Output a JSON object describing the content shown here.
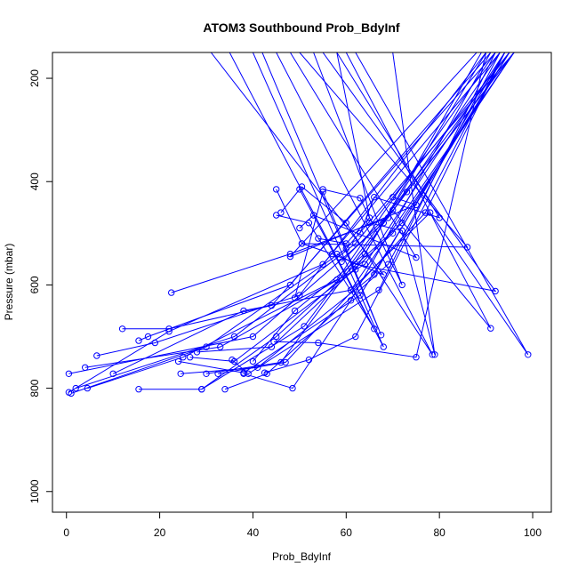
{
  "chart_data": {
    "type": "line",
    "title": "ATOM3 Southbound Prob_BdyInf",
    "xlabel": "Prob_BdyInf",
    "ylabel": "Pressure (mbar)",
    "xlim": [
      -3,
      104
    ],
    "ylim": [
      1040,
      150
    ],
    "y_reversed": true,
    "xticks": [
      0,
      20,
      40,
      60,
      80,
      100
    ],
    "yticks": [
      200,
      400,
      600,
      800,
      1000
    ],
    "color": "#0000ff",
    "marker": "open-circle",
    "grid": false,
    "legend": "none",
    "series": [
      {
        "points": [
          [
            1,
            810
          ],
          [
            30,
            720
          ],
          [
            60,
            530
          ],
          [
            96,
            150
          ]
        ]
      },
      {
        "points": [
          [
            0.5,
            808
          ],
          [
            22,
            690
          ],
          [
            55,
            560
          ],
          [
            93,
            150
          ]
        ]
      },
      {
        "points": [
          [
            2,
            800
          ],
          [
            36,
            700
          ],
          [
            62,
            520
          ],
          [
            95,
            150
          ]
        ]
      },
      {
        "points": [
          [
            4.5,
            800
          ],
          [
            25,
            740
          ],
          [
            58,
            590
          ],
          [
            92,
            150
          ]
        ]
      },
      {
        "points": [
          [
            0.5,
            772
          ],
          [
            40,
            700
          ],
          [
            68,
            480
          ],
          [
            96,
            150
          ]
        ]
      },
      {
        "points": [
          [
            4,
            760
          ],
          [
            33,
            720
          ],
          [
            64,
            560
          ],
          [
            94,
            150
          ]
        ]
      },
      {
        "points": [
          [
            6.5,
            737
          ],
          [
            19,
            712
          ],
          [
            50,
            620
          ],
          [
            90,
            150
          ]
        ]
      },
      {
        "points": [
          [
            10,
            772
          ],
          [
            38,
            650
          ],
          [
            61,
            610
          ],
          [
            96,
            150
          ]
        ]
      },
      {
        "points": [
          [
            12,
            685
          ],
          [
            22,
            685
          ],
          [
            44,
            640
          ],
          [
            92,
            150
          ]
        ]
      },
      {
        "points": [
          [
            15.5,
            708
          ],
          [
            17.5,
            700
          ],
          [
            48,
            600
          ],
          [
            91,
            150
          ]
        ]
      },
      {
        "points": [
          [
            15.5,
            802
          ],
          [
            29,
            802
          ],
          [
            51,
            680
          ],
          [
            95,
            150
          ]
        ]
      },
      {
        "points": [
          [
            22.5,
            615
          ],
          [
            48,
            540
          ],
          [
            69,
            470
          ],
          [
            93,
            150
          ]
        ]
      },
      {
        "points": [
          [
            24,
            748
          ],
          [
            38,
            770
          ],
          [
            63,
            620
          ],
          [
            95,
            150
          ]
        ]
      },
      {
        "points": [
          [
            24.5,
            772
          ],
          [
            41,
            760
          ],
          [
            66,
            580
          ],
          [
            94,
            150
          ]
        ]
      },
      {
        "points": [
          [
            26.5,
            740
          ],
          [
            36,
            748
          ],
          [
            62,
            570
          ],
          [
            90,
            150
          ]
        ]
      },
      {
        "points": [
          [
            28,
            730
          ],
          [
            44,
            720
          ],
          [
            70,
            500
          ],
          [
            96,
            150
          ]
        ]
      },
      {
        "points": [
          [
            29,
            802
          ],
          [
            45,
            700
          ],
          [
            72,
            480
          ],
          [
            95,
            150
          ]
        ]
      },
      {
        "points": [
          [
            30,
            772
          ],
          [
            46,
            750
          ],
          [
            73,
            420
          ],
          [
            96,
            150
          ]
        ]
      },
      {
        "points": [
          [
            32.5,
            772
          ],
          [
            47,
            750
          ],
          [
            77,
            460
          ],
          [
            94,
            150
          ]
        ]
      },
      {
        "points": [
          [
            34,
            802
          ],
          [
            43,
            772
          ],
          [
            69,
            560
          ],
          [
            93,
            150
          ]
        ]
      },
      {
        "points": [
          [
            35.5,
            745
          ],
          [
            39,
            772
          ],
          [
            67,
            610
          ],
          [
            92,
            150
          ]
        ]
      },
      {
        "points": [
          [
            38,
            772
          ],
          [
            48.5,
            800
          ],
          [
            61,
            630
          ],
          [
            91,
            150
          ]
        ]
      },
      {
        "points": [
          [
            40,
            748
          ],
          [
            49,
            650
          ],
          [
            64,
            540
          ],
          [
            89,
            150
          ]
        ]
      },
      {
        "points": [
          [
            42.5,
            770
          ],
          [
            52,
            745
          ],
          [
            62,
            700
          ],
          [
            94,
            150
          ]
        ]
      },
      {
        "points": [
          [
            44.5,
            710
          ],
          [
            54,
            712
          ],
          [
            75,
            740
          ],
          [
            90,
            150
          ]
        ]
      },
      {
        "points": [
          [
            45,
            415
          ],
          [
            50.5,
            520
          ],
          [
            86,
            527
          ],
          [
            50,
            150
          ]
        ]
      },
      {
        "points": [
          [
            45,
            465
          ],
          [
            52,
            480
          ],
          [
            66,
            685
          ],
          [
            35,
            150
          ]
        ]
      },
      {
        "points": [
          [
            46,
            460
          ],
          [
            50,
            415
          ],
          [
            68,
            720
          ],
          [
            40,
            150
          ]
        ]
      },
      {
        "points": [
          [
            49,
            625
          ],
          [
            55,
            420
          ],
          [
            67.5,
            697
          ],
          [
            42,
            150
          ]
        ]
      },
      {
        "points": [
          [
            50.5,
            410
          ],
          [
            60,
            480
          ],
          [
            78.5,
            735
          ],
          [
            45,
            150
          ]
        ]
      },
      {
        "points": [
          [
            50,
            490
          ],
          [
            53,
            465
          ],
          [
            75,
            547
          ],
          [
            48,
            150
          ]
        ]
      },
      {
        "points": [
          [
            50.5,
            520
          ],
          [
            57,
            540
          ],
          [
            68,
            580
          ],
          [
            31,
            150
          ]
        ]
      },
      {
        "points": [
          [
            54,
            510
          ],
          [
            60,
            520
          ],
          [
            65,
            470
          ],
          [
            58,
            150
          ]
        ]
      },
      {
        "points": [
          [
            55,
            415
          ],
          [
            63,
            432
          ],
          [
            72,
            600
          ],
          [
            53,
            150
          ]
        ]
      },
      {
        "points": [
          [
            58,
            540
          ],
          [
            62,
            560
          ],
          [
            92,
            612
          ],
          [
            55,
            150
          ]
        ]
      },
      {
        "points": [
          [
            59,
            555
          ],
          [
            70,
            455
          ],
          [
            91,
            684
          ],
          [
            60,
            150
          ]
        ]
      },
      {
        "points": [
          [
            61,
            610
          ],
          [
            78,
            460
          ],
          [
            99,
            735
          ],
          [
            62,
            150
          ]
        ]
      },
      {
        "points": [
          [
            63,
            500
          ],
          [
            66,
            430
          ],
          [
            80,
            470
          ],
          [
            58,
            150
          ]
        ]
      },
      {
        "points": [
          [
            65,
            480
          ],
          [
            72,
            495
          ],
          [
            79,
            735
          ],
          [
            70,
            150
          ]
        ]
      },
      {
        "points": [
          [
            70,
            430
          ],
          [
            75,
            445
          ],
          [
            48,
            545
          ],
          [
            88,
            150
          ]
        ]
      }
    ]
  }
}
